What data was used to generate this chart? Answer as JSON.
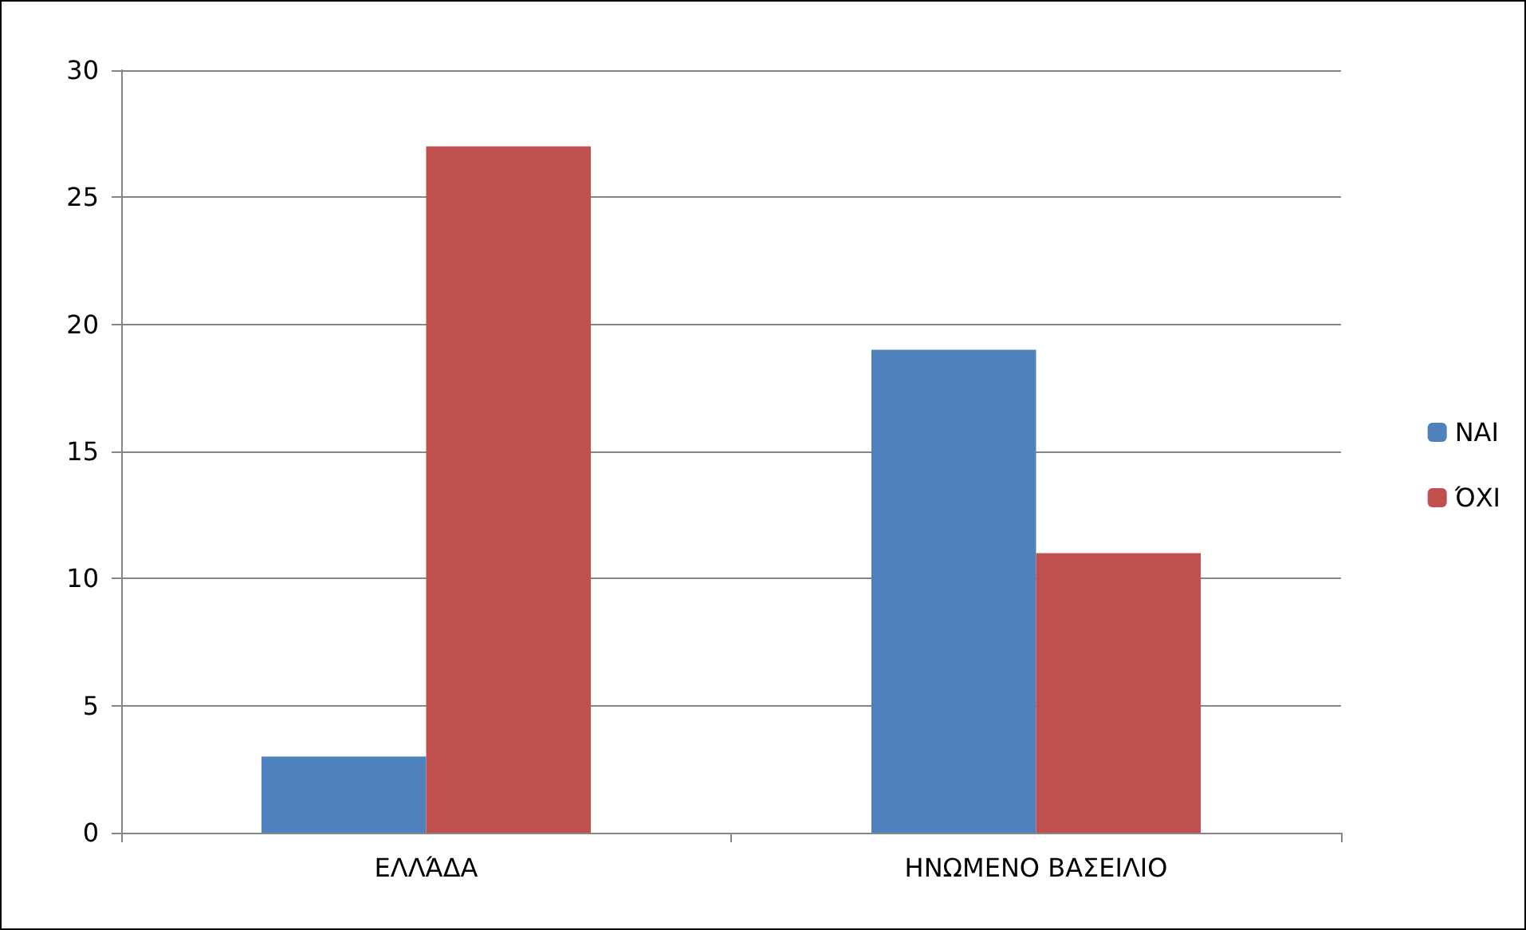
{
  "chart_data": {
    "type": "bar",
    "categories": [
      "ΕΛΛΆΔΑ",
      "ΗΝΩΜΕΝΟ ΒΑΣΕΙΛΙΟ"
    ],
    "series": [
      {
        "name": "ΝΑΙ",
        "color": "#4f81bd",
        "values": [
          3,
          19
        ]
      },
      {
        "name": "ΌΧΙ",
        "color": "#c0504d",
        "values": [
          27,
          11
        ]
      }
    ],
    "ylim": [
      0,
      30
    ],
    "yticks": [
      0,
      5,
      10,
      15,
      20,
      25,
      30
    ],
    "grid": "y",
    "legend": "right"
  }
}
